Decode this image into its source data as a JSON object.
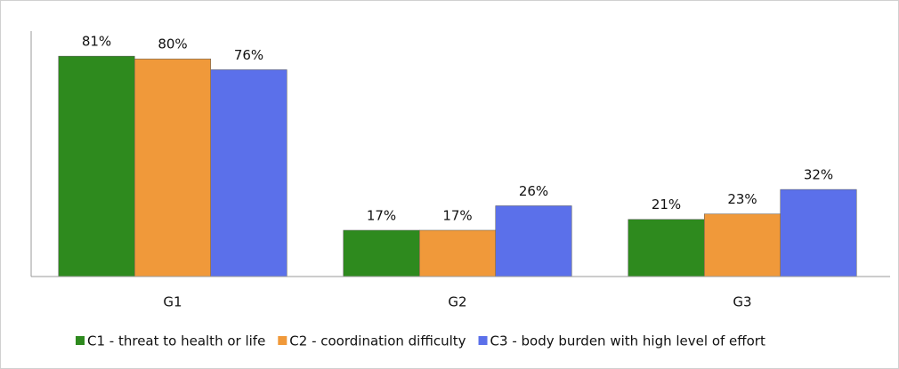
{
  "chart_data": {
    "type": "bar",
    "categories": [
      "G1",
      "G2",
      "G3"
    ],
    "series": [
      {
        "name": "C1 - threat to health or life",
        "color": "#2e8a1e",
        "values": [
          81,
          17,
          21
        ],
        "value_labels": [
          "81%",
          "17%",
          "21%"
        ]
      },
      {
        "name": "C2 - coordination difficulty",
        "color": "#f0993a",
        "values": [
          80,
          17,
          23
        ],
        "value_labels": [
          "80%",
          "17%",
          "23%"
        ]
      },
      {
        "name": "C3 - body burden with high level of effort",
        "color": "#5b70ea",
        "values": [
          76,
          26,
          32
        ],
        "value_labels": [
          "76%",
          "26%",
          "32%"
        ]
      }
    ],
    "ylim": [
      0,
      100
    ],
    "legend": "bottom"
  }
}
